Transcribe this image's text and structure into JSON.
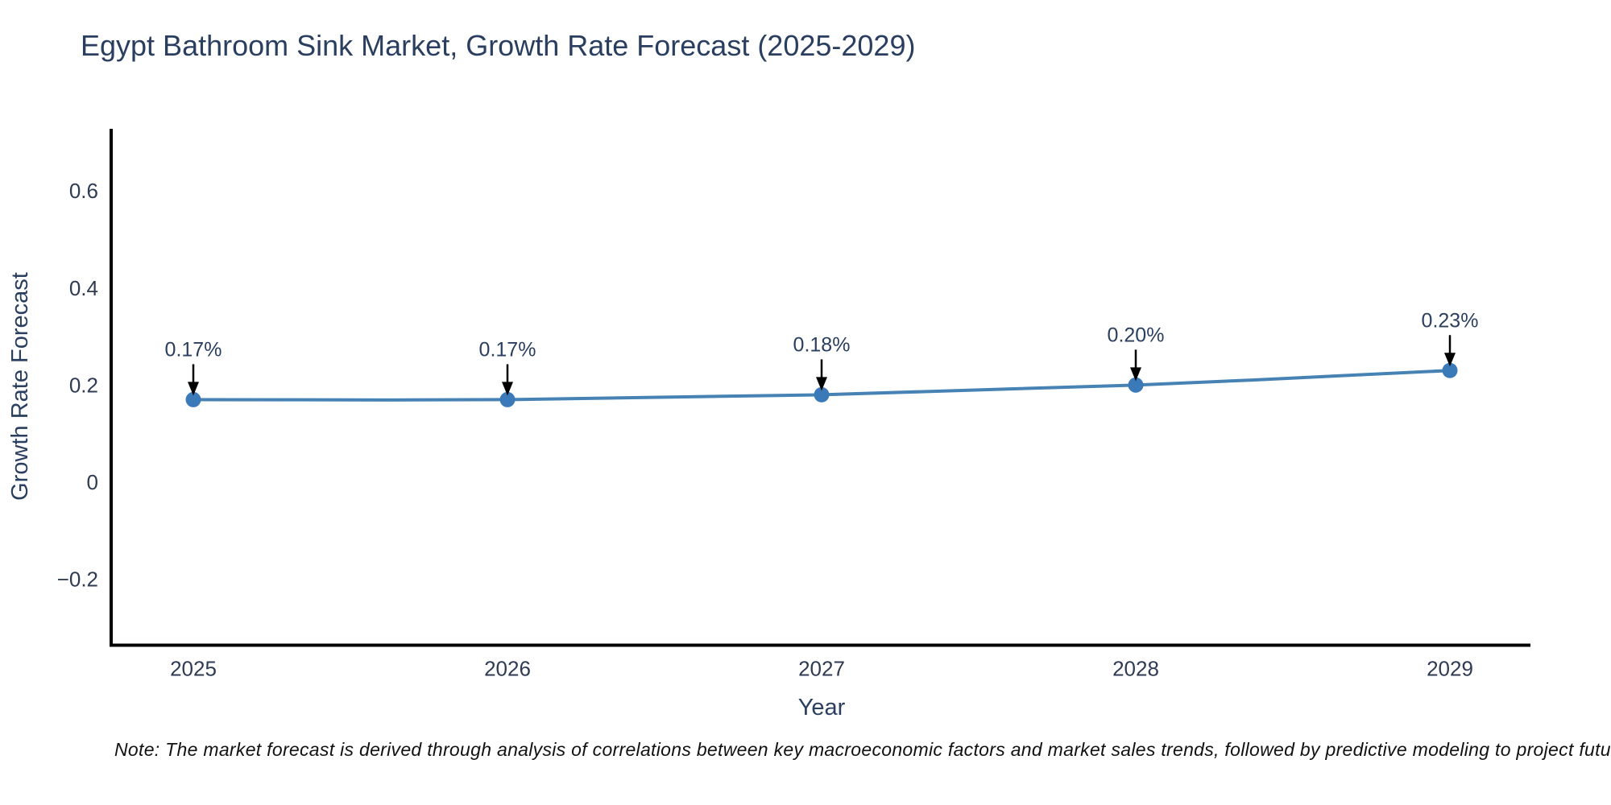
{
  "chart": {
    "title": "Egypt Bathroom Sink Market, Growth Rate Forecast (2025-2029)",
    "xlabel": "Year",
    "ylabel": "Growth Rate Forecast"
  },
  "note": {
    "text": "Note: The market forecast is derived through analysis of correlations between key macroeconomic factors and market sales trends, followed by predictive modeling to project future sa"
  },
  "chart_data": {
    "type": "line",
    "title": "Egypt Bathroom Sink Market, Growth Rate Forecast (2025-2029)",
    "xlabel": "Year",
    "ylabel": "Growth Rate Forecast",
    "categories": [
      "2025",
      "2026",
      "2027",
      "2028",
      "2029"
    ],
    "values": [
      0.17,
      0.17,
      0.18,
      0.2,
      0.23
    ],
    "point_labels": [
      "0.17%",
      "0.17%",
      "0.18%",
      "0.20%",
      "0.23%"
    ],
    "yticks": [
      -0.2,
      0,
      0.2,
      0.4,
      0.6
    ],
    "ytick_labels": [
      "−0.2",
      "0",
      "0.2",
      "0.4",
      "0.6"
    ],
    "ylim": [
      -0.336,
      0.728
    ],
    "grid": false,
    "legend": false,
    "line_color": "#4682b4",
    "marker_color": "#3a7ab8",
    "annotation_color": "#2a3f5f",
    "arrow_color": "#000000",
    "axis_color": "#000000",
    "title_color": "#2a3f5f"
  }
}
